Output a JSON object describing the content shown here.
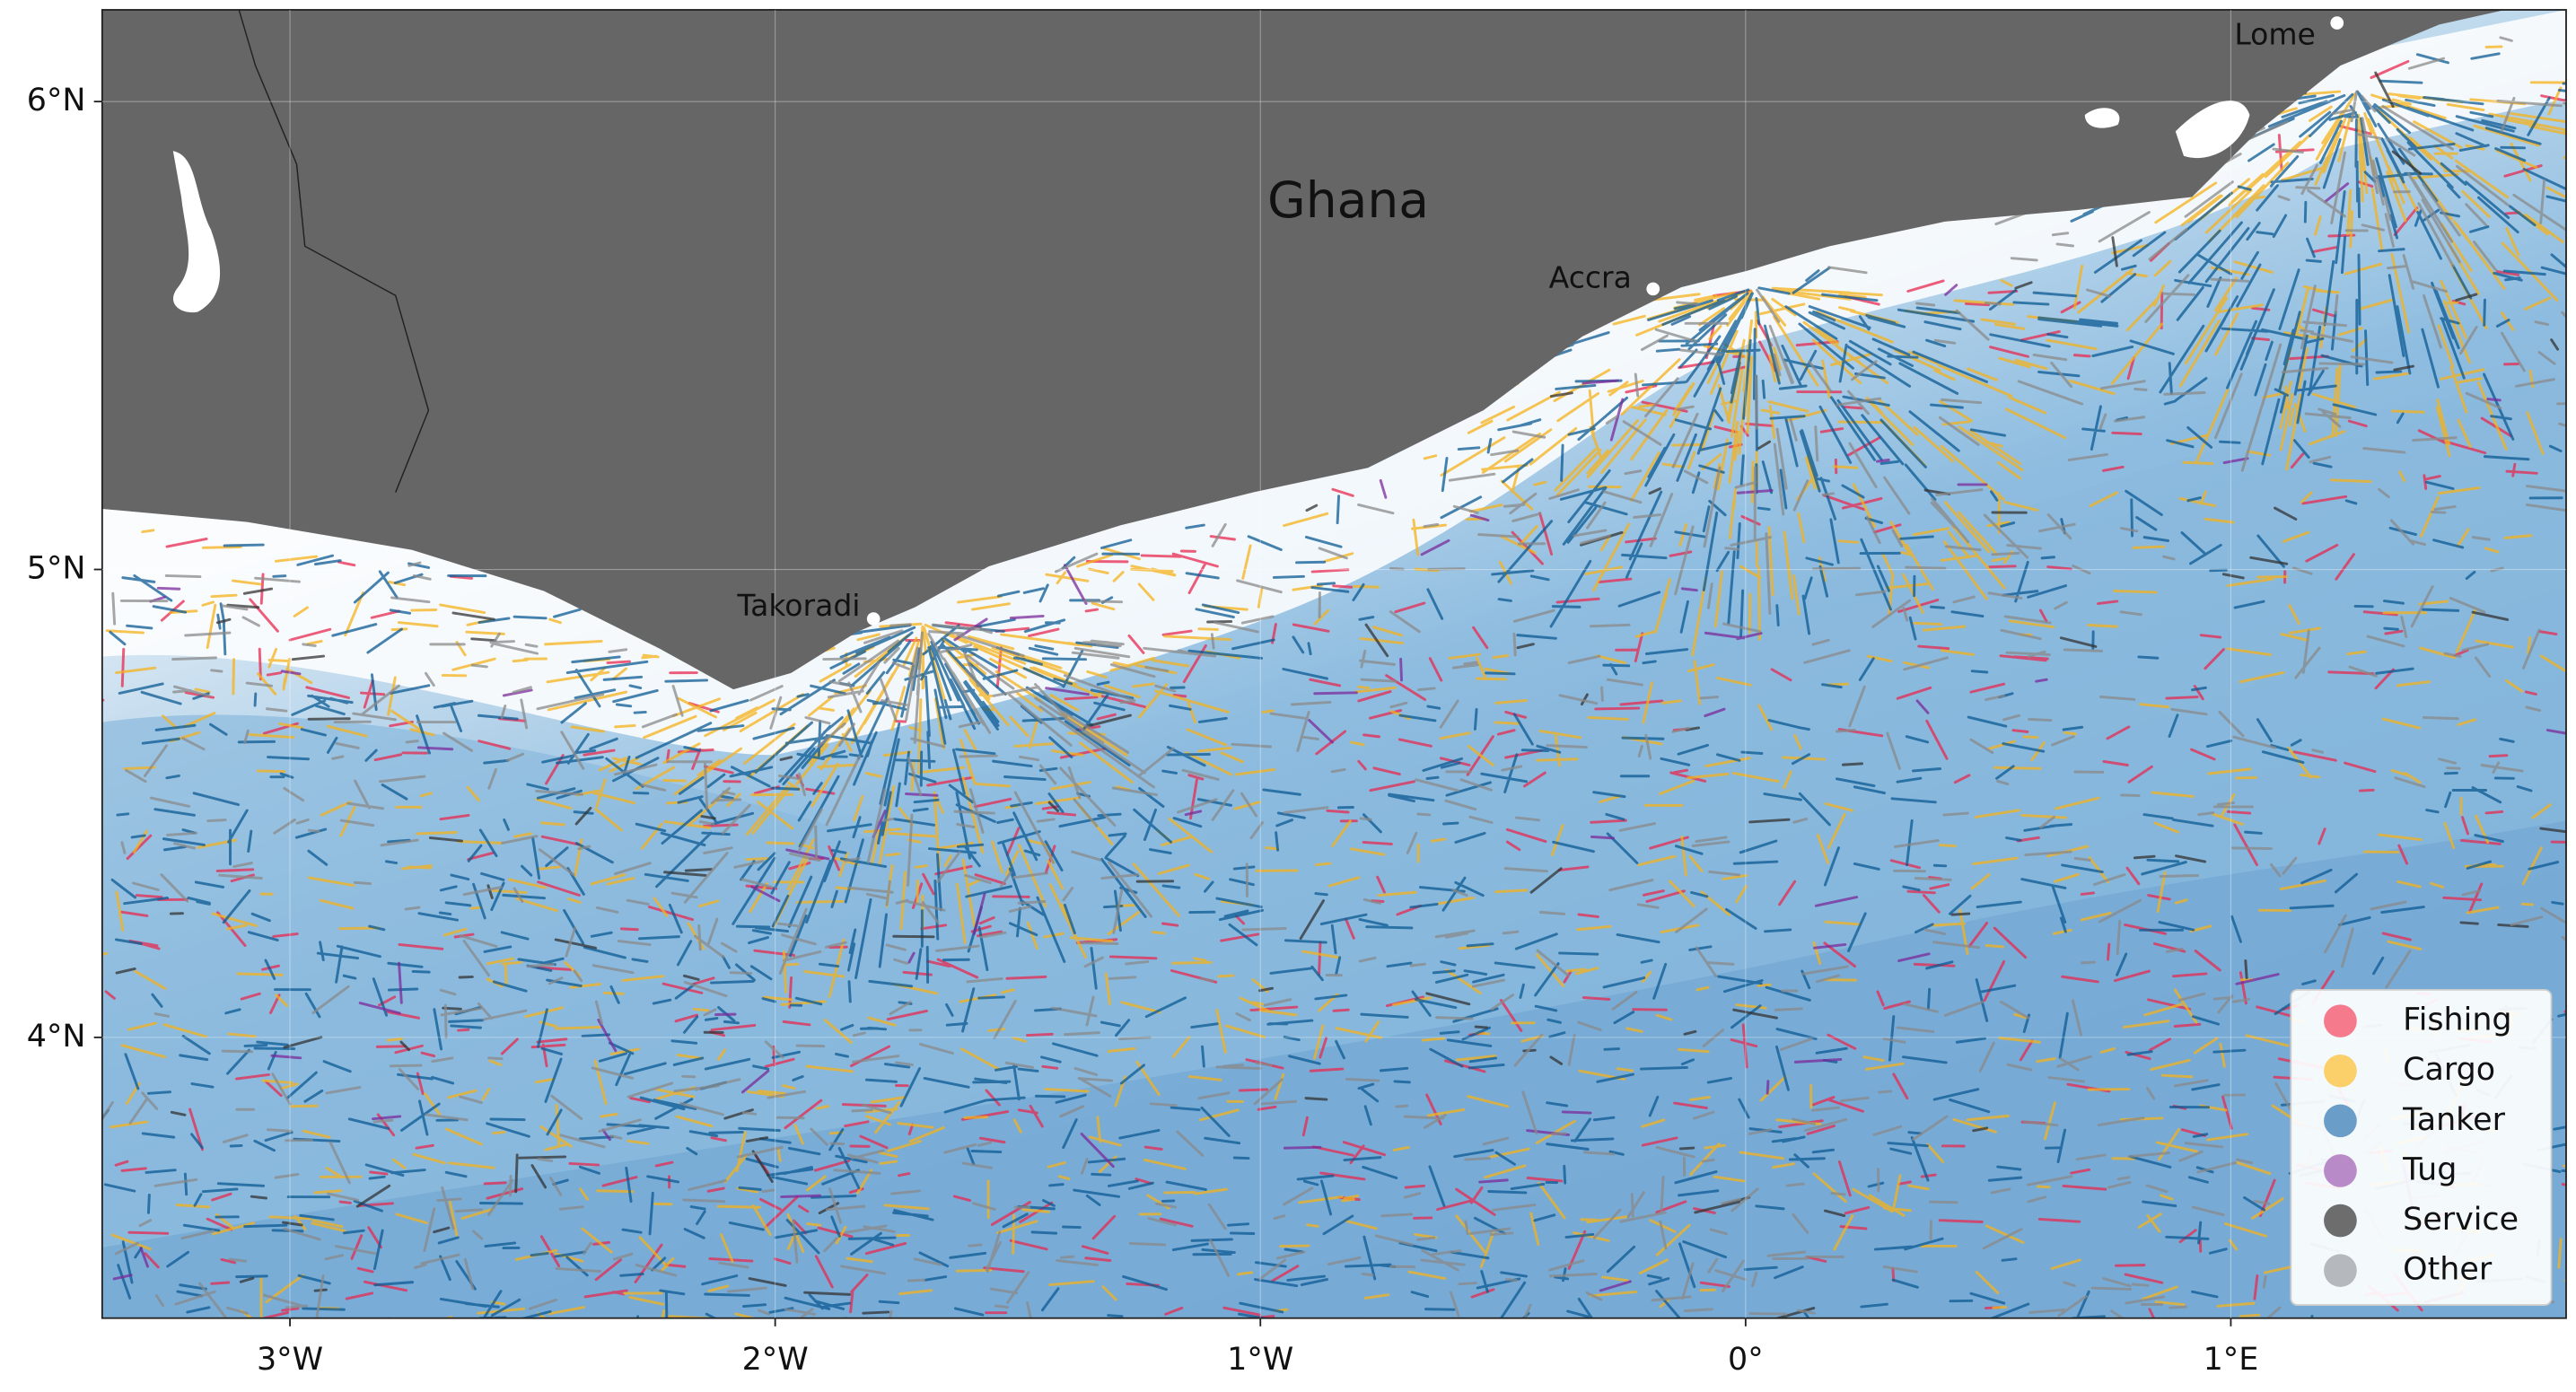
{
  "map": {
    "title": "Ghana",
    "places": [
      "Takoradi",
      "Accra",
      "Lome"
    ],
    "xlim": [
      -3.387,
      1.691
    ],
    "ylim": [
      3.4,
      6.196
    ],
    "xticks": [
      {
        "value": -3,
        "label": "3°W"
      },
      {
        "value": -2,
        "label": "2°W"
      },
      {
        "value": -1,
        "label": "1°W"
      },
      {
        "value": 0,
        "label": "0°"
      },
      {
        "value": 1,
        "label": "1°E"
      }
    ],
    "yticks": [
      {
        "value": 4,
        "label": "4°N"
      },
      {
        "value": 5,
        "label": "5°N"
      },
      {
        "value": 6,
        "label": "6°N"
      }
    ],
    "legend": [
      {
        "name": "Fishing",
        "color": "#f47a8c"
      },
      {
        "name": "Cargo",
        "color": "#fbcf6a"
      },
      {
        "name": "Tanker",
        "color": "#6a9dc7"
      },
      {
        "name": "Tug",
        "color": "#b98ac8"
      },
      {
        "name": "Service",
        "color": "#6d6d6d"
      },
      {
        "name": "Other",
        "color": "#b5b8bd"
      }
    ]
  }
}
